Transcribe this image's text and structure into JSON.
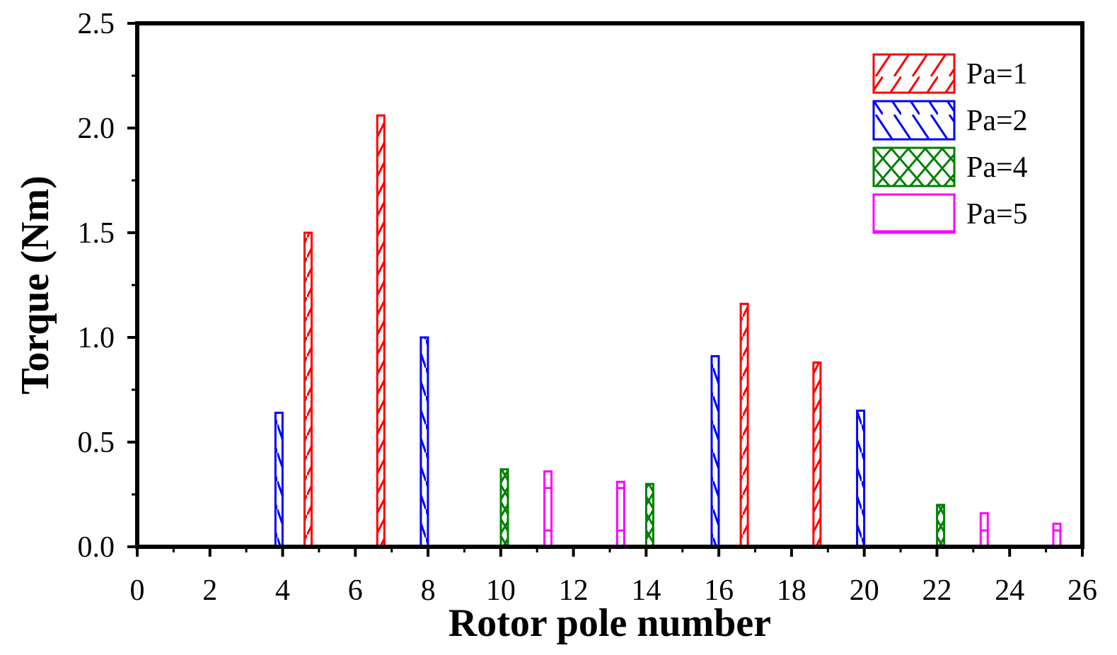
{
  "chart_data": {
    "type": "bar",
    "xlabel": "Rotor pole number",
    "ylabel": "Torque (Nm)",
    "xlim": [
      0,
      26
    ],
    "ylim": [
      0,
      2.5
    ],
    "xticks": [
      "0",
      "2",
      "4",
      "6",
      "8",
      "10",
      "12",
      "14",
      "16",
      "18",
      "20",
      "22",
      "24",
      "26"
    ],
    "yticks": [
      "0.0",
      "0.5",
      "1.0",
      "1.5",
      "2.0",
      "2.5"
    ],
    "grid": false,
    "legend_position": "top-right",
    "series": [
      {
        "name": "Pa=1",
        "color": "#ff0000",
        "pattern": "forward-diagonal",
        "points": [
          {
            "x": 4.7,
            "y": 1.5
          },
          {
            "x": 6.7,
            "y": 2.06
          },
          {
            "x": 16.7,
            "y": 1.16
          },
          {
            "x": 18.7,
            "y": 0.88
          }
        ]
      },
      {
        "name": "Pa=2",
        "color": "#0000ff",
        "pattern": "back-diagonal",
        "points": [
          {
            "x": 3.9,
            "y": 0.64
          },
          {
            "x": 7.9,
            "y": 1.0
          },
          {
            "x": 15.9,
            "y": 0.91
          },
          {
            "x": 19.9,
            "y": 0.65
          }
        ]
      },
      {
        "name": "Pa=4",
        "color": "#008000",
        "pattern": "crosshatch",
        "points": [
          {
            "x": 10.1,
            "y": 0.37
          },
          {
            "x": 14.1,
            "y": 0.3
          },
          {
            "x": 22.1,
            "y": 0.2
          }
        ]
      },
      {
        "name": "Pa=5",
        "color": "#ff00ff",
        "pattern": "horizontal",
        "points": [
          {
            "x": 11.3,
            "y": 0.36
          },
          {
            "x": 13.3,
            "y": 0.31
          },
          {
            "x": 23.3,
            "y": 0.16
          },
          {
            "x": 25.3,
            "y": 0.11
          }
        ]
      }
    ]
  }
}
